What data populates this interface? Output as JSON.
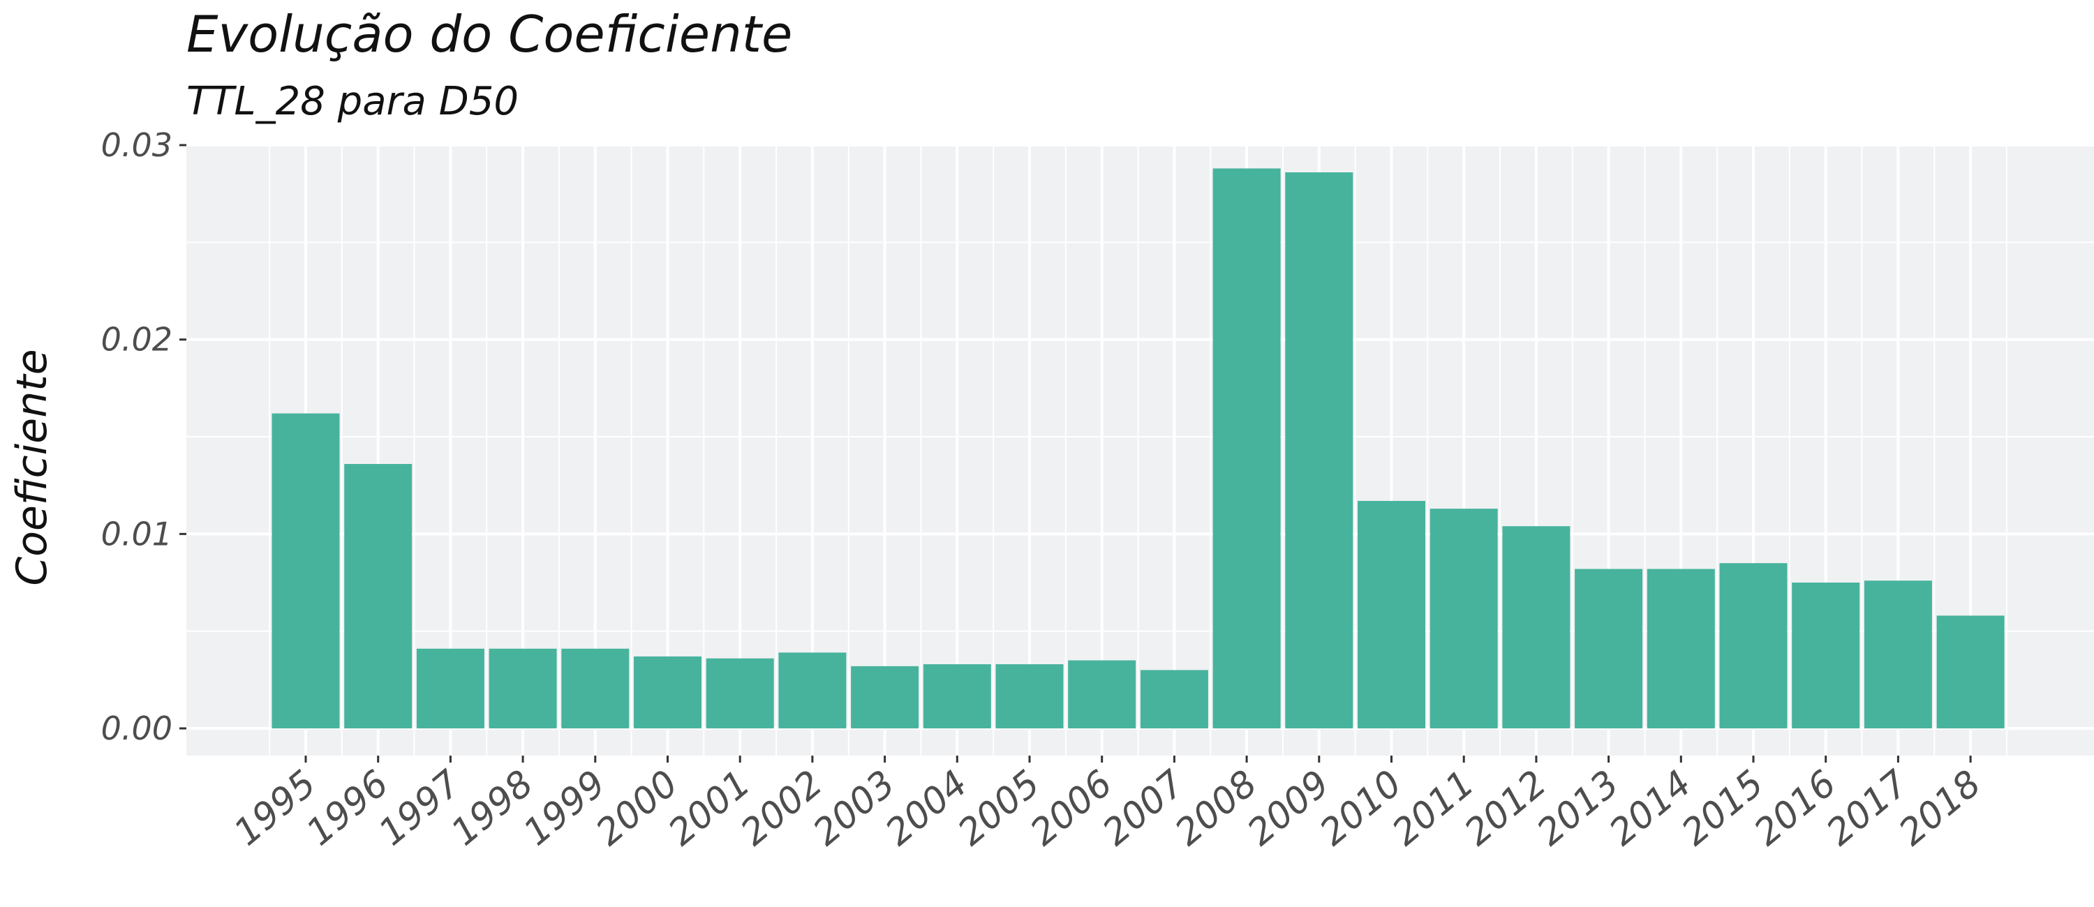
{
  "chart_data": {
    "type": "bar",
    "title": "Evolução do Coeficiente",
    "subtitle": "TTL_28 para D50",
    "xlabel": "",
    "ylabel": "Coeficiente",
    "categories": [
      "1995",
      "1996",
      "1997",
      "1998",
      "1999",
      "2000",
      "2001",
      "2002",
      "2003",
      "2004",
      "2005",
      "2006",
      "2007",
      "2008",
      "2009",
      "2010",
      "2011",
      "2012",
      "2013",
      "2014",
      "2015",
      "2016",
      "2017",
      "2018"
    ],
    "values": [
      0.0162,
      0.0136,
      0.0041,
      0.0041,
      0.0041,
      0.0037,
      0.0036,
      0.0039,
      0.0032,
      0.0033,
      0.0033,
      0.0035,
      0.003,
      0.0288,
      0.0286,
      0.0117,
      0.0113,
      0.0104,
      0.0082,
      0.0082,
      0.0085,
      0.0075,
      0.0076,
      0.0058
    ],
    "ylim": [
      -0.0013,
      0.03
    ],
    "yticks": [
      "0.00",
      "0.01",
      "0.02",
      "0.03"
    ],
    "ytick_values": [
      0,
      0.01,
      0.02,
      0.03
    ],
    "grid": true,
    "legend": "none",
    "colors": {
      "bar": "#47B39D",
      "panel": "#F0F1F3",
      "grid": "#FFFFFF",
      "text": "#4d4d4d"
    }
  }
}
